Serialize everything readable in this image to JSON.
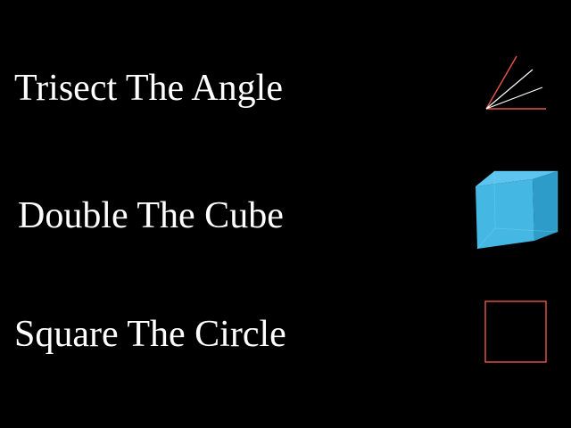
{
  "rows": [
    {
      "label": "Trisect The Angle",
      "icon": "trisected-angle-icon"
    },
    {
      "label": "Double The Cube",
      "icon": "cube-icon"
    },
    {
      "label": "Square The Circle",
      "icon": "square-icon"
    }
  ],
  "colors": {
    "background": "#000000",
    "text": "#ffffff",
    "accent_red": "#e8554a",
    "trisector": "#ffffff",
    "cube_front": "#45b7e3",
    "cube_top": "#5cc4ee",
    "cube_side": "#2e9cc9"
  }
}
